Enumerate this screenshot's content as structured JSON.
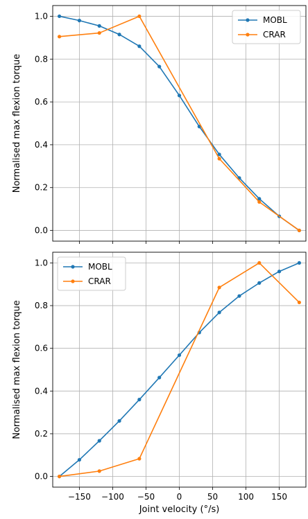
{
  "colors": {
    "MOBL": "#1f77b4",
    "CRAR": "#ff7f0e",
    "grid": "#b0b0b0",
    "axis": "#000000"
  },
  "chart_data": [
    {
      "type": "line",
      "xlabel": "",
      "ylabel": "Normalised max flexion torque",
      "xlim": [
        -190,
        190
      ],
      "ylim": [
        -0.05,
        1.05
      ],
      "xticks": [
        -150,
        -100,
        -50,
        0,
        50,
        100,
        150
      ],
      "yticks": [
        0.0,
        0.2,
        0.4,
        0.6,
        0.8,
        1.0
      ],
      "ytick_labels": [
        "0.0",
        "0.2",
        "0.4",
        "0.6",
        "0.8",
        "1.0"
      ],
      "show_xtick_labels": false,
      "grid": true,
      "legend": "top-right",
      "series": [
        {
          "name": "MOBL",
          "color": "#1f77b4",
          "marker": true,
          "x": [
            -180,
            -150,
            -120,
            -90,
            -60,
            -30,
            0,
            30,
            60,
            90,
            120,
            150,
            180
          ],
          "y": [
            1.0,
            0.98,
            0.955,
            0.915,
            0.86,
            0.765,
            0.63,
            0.485,
            0.355,
            0.245,
            0.148,
            0.066,
            0.0
          ]
        },
        {
          "name": "CRAR",
          "color": "#ff7f0e",
          "marker": true,
          "x": [
            -180,
            -120,
            -60,
            60,
            120,
            180
          ],
          "y": [
            0.905,
            0.922,
            1.0,
            0.335,
            0.133,
            0.0
          ]
        }
      ]
    },
    {
      "type": "line",
      "xlabel": "Joint velocity (°/s)",
      "ylabel": "Normalised max flexion torque",
      "xlim": [
        -190,
        190
      ],
      "ylim": [
        -0.05,
        1.05
      ],
      "xticks": [
        -150,
        -100,
        -50,
        0,
        50,
        100,
        150
      ],
      "xtick_labels": [
        "−150",
        "−100",
        "−50",
        "0",
        "50",
        "100",
        "150"
      ],
      "yticks": [
        0.0,
        0.2,
        0.4,
        0.6,
        0.8,
        1.0
      ],
      "ytick_labels": [
        "0.0",
        "0.2",
        "0.4",
        "0.6",
        "0.8",
        "1.0"
      ],
      "show_xtick_labels": true,
      "grid": true,
      "legend": "top-left",
      "series": [
        {
          "name": "MOBL",
          "color": "#1f77b4",
          "marker": true,
          "x": [
            -180,
            -150,
            -120,
            -90,
            -60,
            -30,
            0,
            30,
            60,
            90,
            120,
            150,
            180
          ],
          "y": [
            0.0,
            0.078,
            0.167,
            0.26,
            0.36,
            0.463,
            0.568,
            0.674,
            0.768,
            0.845,
            0.906,
            0.96,
            1.0
          ]
        },
        {
          "name": "CRAR",
          "color": "#ff7f0e",
          "marker": true,
          "x": [
            -180,
            -120,
            -60,
            60,
            120,
            180
          ],
          "y": [
            0.0,
            0.025,
            0.083,
            0.885,
            1.0,
            0.815
          ]
        }
      ]
    }
  ]
}
